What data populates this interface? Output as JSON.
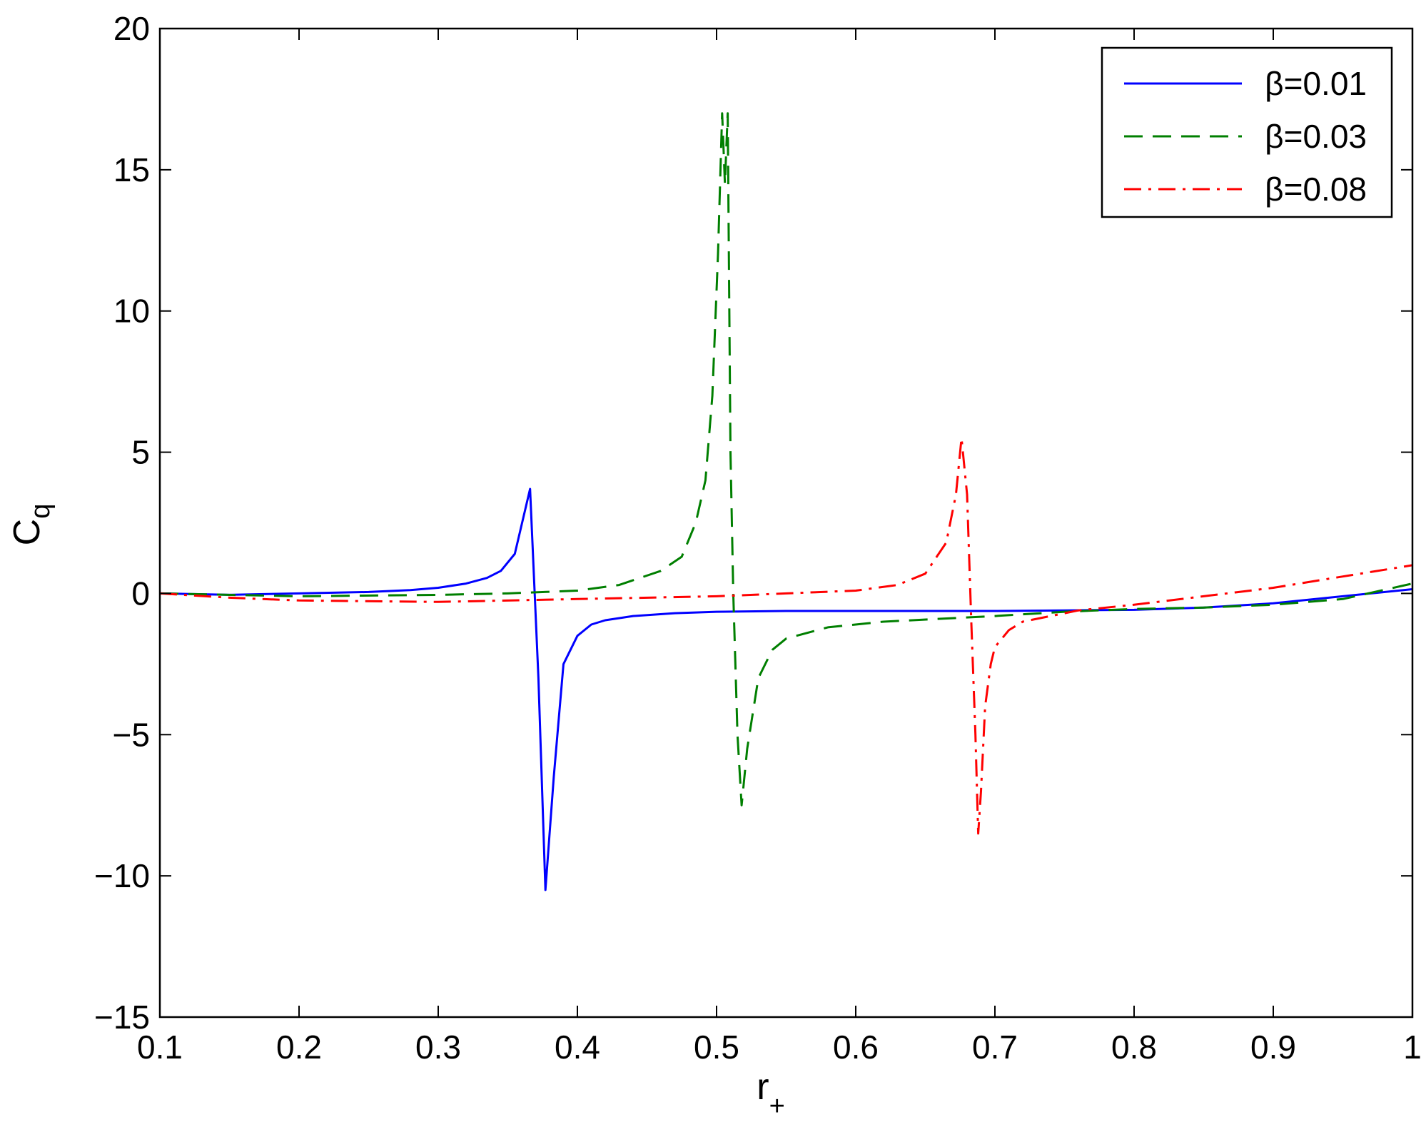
{
  "chart_data": {
    "type": "line",
    "title": "",
    "xlabel": "r",
    "xlabel_sub": "+",
    "ylabel": "C",
    "ylabel_sub": "q",
    "xlim": [
      0.1,
      1.0
    ],
    "ylim": [
      -15,
      20
    ],
    "grid": false,
    "legend_position": "top-right",
    "x_ticks": [
      0.1,
      0.2,
      0.3,
      0.4,
      0.5,
      0.6,
      0.7,
      0.8,
      0.9,
      1.0
    ],
    "x_tick_labels": [
      "0.1",
      "0.2",
      "0.3",
      "0.4",
      "0.5",
      "0.6",
      "0.7",
      "0.8",
      "0.9",
      "1"
    ],
    "y_ticks": [
      -15,
      -10,
      -5,
      0,
      5,
      10,
      15,
      20
    ],
    "y_tick_labels": [
      "−15",
      "−10",
      "−5",
      "0",
      "5",
      "10",
      "15",
      "20"
    ],
    "series": [
      {
        "name": "β=0.01",
        "color": "#0000ff",
        "dash": "solid",
        "x": [
          0.1,
          0.15,
          0.2,
          0.25,
          0.28,
          0.3,
          0.32,
          0.335,
          0.345,
          0.355,
          0.366,
          0.372,
          0.377,
          0.383,
          0.39,
          0.4,
          0.41,
          0.42,
          0.44,
          0.47,
          0.5,
          0.55,
          0.6,
          0.7,
          0.75,
          0.8,
          0.85,
          0.9,
          0.95,
          1.0
        ],
        "y": [
          0.0,
          -0.05,
          0.0,
          0.05,
          0.12,
          0.2,
          0.35,
          0.55,
          0.8,
          1.4,
          3.7,
          -3.0,
          -10.5,
          -6.5,
          -2.5,
          -1.5,
          -1.1,
          -0.95,
          -0.8,
          -0.7,
          -0.65,
          -0.62,
          -0.62,
          -0.62,
          -0.6,
          -0.58,
          -0.5,
          -0.35,
          -0.1,
          0.15
        ]
      },
      {
        "name": "β=0.03",
        "color": "#007f00",
        "dash": "dashed",
        "x": [
          0.1,
          0.2,
          0.3,
          0.35,
          0.4,
          0.43,
          0.46,
          0.475,
          0.485,
          0.492,
          0.497,
          0.501,
          0.504,
          0.506,
          0.508,
          0.51,
          0.512,
          0.515,
          0.518,
          0.522,
          0.53,
          0.54,
          0.55,
          0.58,
          0.62,
          0.7,
          0.75,
          0.8,
          0.85,
          0.9,
          0.95,
          1.0
        ],
        "y": [
          0.0,
          -0.1,
          -0.05,
          0.0,
          0.1,
          0.3,
          0.8,
          1.3,
          2.5,
          4.0,
          7.0,
          12.0,
          17.0,
          14.5,
          17.0,
          5.0,
          0.0,
          -5.0,
          -7.5,
          -5.5,
          -3.0,
          -2.0,
          -1.6,
          -1.2,
          -1.0,
          -0.8,
          -0.65,
          -0.55,
          -0.5,
          -0.4,
          -0.2,
          0.35
        ]
      },
      {
        "name": "β=0.08",
        "color": "#ff0000",
        "dash": "dashdot",
        "x": [
          0.1,
          0.15,
          0.2,
          0.3,
          0.4,
          0.5,
          0.55,
          0.6,
          0.63,
          0.65,
          0.665,
          0.672,
          0.676,
          0.68,
          0.683,
          0.686,
          0.688,
          0.69,
          0.693,
          0.697,
          0.7,
          0.71,
          0.72,
          0.74,
          0.76,
          0.8,
          0.9,
          0.95,
          1.0
        ],
        "y": [
          0.0,
          -0.15,
          -0.25,
          -0.3,
          -0.2,
          -0.1,
          0.0,
          0.1,
          0.3,
          0.7,
          1.8,
          3.5,
          5.5,
          3.5,
          -1.0,
          -5.0,
          -8.5,
          -7.0,
          -4.0,
          -2.5,
          -1.9,
          -1.3,
          -1.0,
          -0.8,
          -0.6,
          -0.4,
          0.2,
          0.6,
          1.0
        ]
      }
    ]
  }
}
